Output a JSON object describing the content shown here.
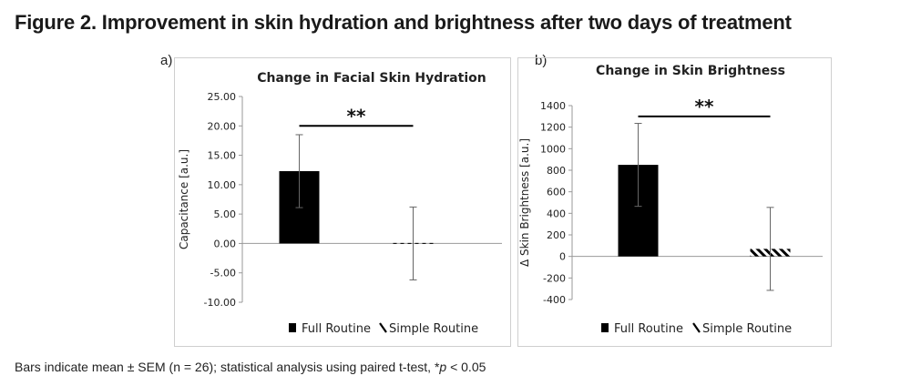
{
  "figure": {
    "title": "Figure 2. Improvement in skin hydration and brightness after two days of treatment",
    "footnote_prefix": "Bars indicate mean ± SEM (n = 26); statistical analysis using paired t-test, *",
    "footnote_p": "p",
    "footnote_suffix": " < 0.05"
  },
  "colors": {
    "full_routine": "#000000",
    "simple_routine_hatch": "#000000",
    "axis": "#999999",
    "significance_bar": "#000000"
  },
  "chart_data": [
    {
      "panel_label": "a)",
      "type": "bar",
      "title": "Change in Facial Skin Hydration",
      "ylabel": "Capacitance [a.u.]",
      "xlabel": "",
      "ylim": [
        -10,
        25
      ],
      "yticks": [
        -10,
        -5,
        0,
        5,
        10,
        15,
        20,
        25
      ],
      "ytick_labels": [
        "-10.00",
        "-5.00",
        "0.00",
        "5.00",
        "10.00",
        "15.00",
        "20.00",
        "25.00"
      ],
      "grid": false,
      "legend_position": "bottom",
      "categories": [
        "Full Routine",
        "Simple Routine"
      ],
      "values": [
        12.3,
        0.0
      ],
      "error": [
        6.2,
        6.2
      ],
      "bar_styles": [
        "solid",
        "hatched"
      ],
      "significance": {
        "label": "**",
        "y": 20.0,
        "between": [
          "Full Routine",
          "Simple Routine"
        ]
      },
      "legend": [
        "Full Routine",
        "Simple Routine"
      ]
    },
    {
      "panel_label": "b)",
      "type": "bar",
      "title": "Change in Skin Brightness",
      "ylabel": "Δ Skin Brightness [a.u.]",
      "xlabel": "",
      "ylim": [
        -400,
        1400
      ],
      "yticks": [
        -400,
        -200,
        0,
        200,
        400,
        600,
        800,
        1000,
        1200,
        1400
      ],
      "ytick_labels": [
        "-400",
        "-200",
        "0",
        "200",
        "400",
        "600",
        "800",
        "1000",
        "1200",
        "1400"
      ],
      "grid": false,
      "legend_position": "bottom",
      "categories": [
        "Full Routine",
        "Simple Routine"
      ],
      "values": [
        850,
        70
      ],
      "error": [
        385,
        385
      ],
      "bar_styles": [
        "solid",
        "hatched"
      ],
      "significance": {
        "label": "**",
        "y": 1300,
        "between": [
          "Full Routine",
          "Simple Routine"
        ]
      },
      "legend": [
        "Full Routine",
        "Simple Routine"
      ]
    }
  ]
}
